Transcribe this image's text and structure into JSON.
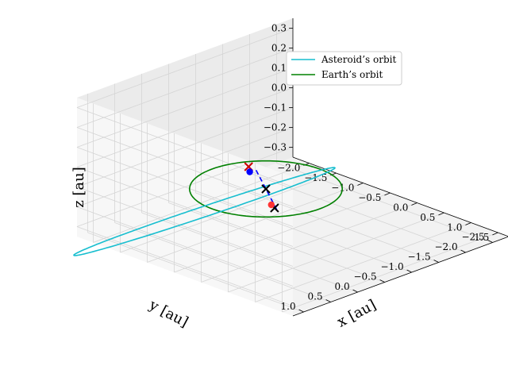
{
  "chart_data": {
    "type": "line",
    "projection": "3d",
    "grid": true,
    "legend_position": "top-right",
    "xlabel": "x [au]",
    "ylabel": "y [au]",
    "zlabel": "z [au]",
    "xlim": [
      -2.3,
      1.7
    ],
    "ylim": [
      -2.8,
      1.2
    ],
    "zlim": [
      -0.35,
      0.35
    ],
    "xticks": [
      -2.0,
      -1.5,
      -1.0,
      -0.5,
      0.0,
      0.5,
      1.0,
      1.5
    ],
    "xtick_labels": [
      "−2.0",
      "−1.5",
      "−1.0",
      "−0.5",
      "0.0",
      "0.5",
      "1.0",
      "1.5"
    ],
    "yticks": [
      1.0,
      0.5,
      0.0,
      -0.5,
      -1.0,
      -1.5,
      -2.0,
      -2.5
    ],
    "ytick_labels": [
      "1.0",
      "0.5",
      "0.0",
      "−0.5",
      "−1.0",
      "−1.5",
      "−2.0",
      "−2.5"
    ],
    "zticks": [
      0.3,
      0.2,
      0.1,
      0.0,
      -0.1,
      -0.2,
      -0.3
    ],
    "ztick_labels": [
      "0.3",
      "0.2",
      "0.1",
      "0.0",
      "−0.1",
      "−0.2",
      "−0.3"
    ],
    "series": [
      {
        "name": "Asteroid's orbit",
        "label": "Asteroid’s orbit",
        "color": "#17becf",
        "kind": "ellipse",
        "a": 1.9,
        "e": 0.6,
        "inclination_deg": 10,
        "omega_deg": 0,
        "node_deg": -90
      },
      {
        "name": "Earth's orbit",
        "label": "Earth’s orbit",
        "color": "#008000",
        "kind": "circle",
        "radius": 1.0
      }
    ],
    "segment": {
      "color": "#0000ff",
      "style": "dashed",
      "from": [
        0.77,
        0.57,
        0.03
      ],
      "to": [
        -0.77,
        -0.57,
        -0.03
      ]
    },
    "markers": [
      {
        "label": "sun",
        "x": 0.0,
        "y": 0.0,
        "z": 0.0,
        "symbol": "x",
        "color": "#000000"
      },
      {
        "label": "node-1",
        "x": 0.76,
        "y": 0.6,
        "z": 0.04,
        "symbol": "x",
        "color": "#000000"
      },
      {
        "label": "asteroid",
        "x": 0.6,
        "y": 0.5,
        "z": 0.03,
        "symbol": "dot",
        "color": "#ff3333"
      },
      {
        "label": "node-2",
        "x": -0.92,
        "y": -0.6,
        "z": -0.04,
        "symbol": "x",
        "color": "#cc0000"
      },
      {
        "label": "earth",
        "x": -0.78,
        "y": -0.48,
        "z": -0.04,
        "symbol": "dot",
        "color": "#0000ff"
      }
    ]
  }
}
